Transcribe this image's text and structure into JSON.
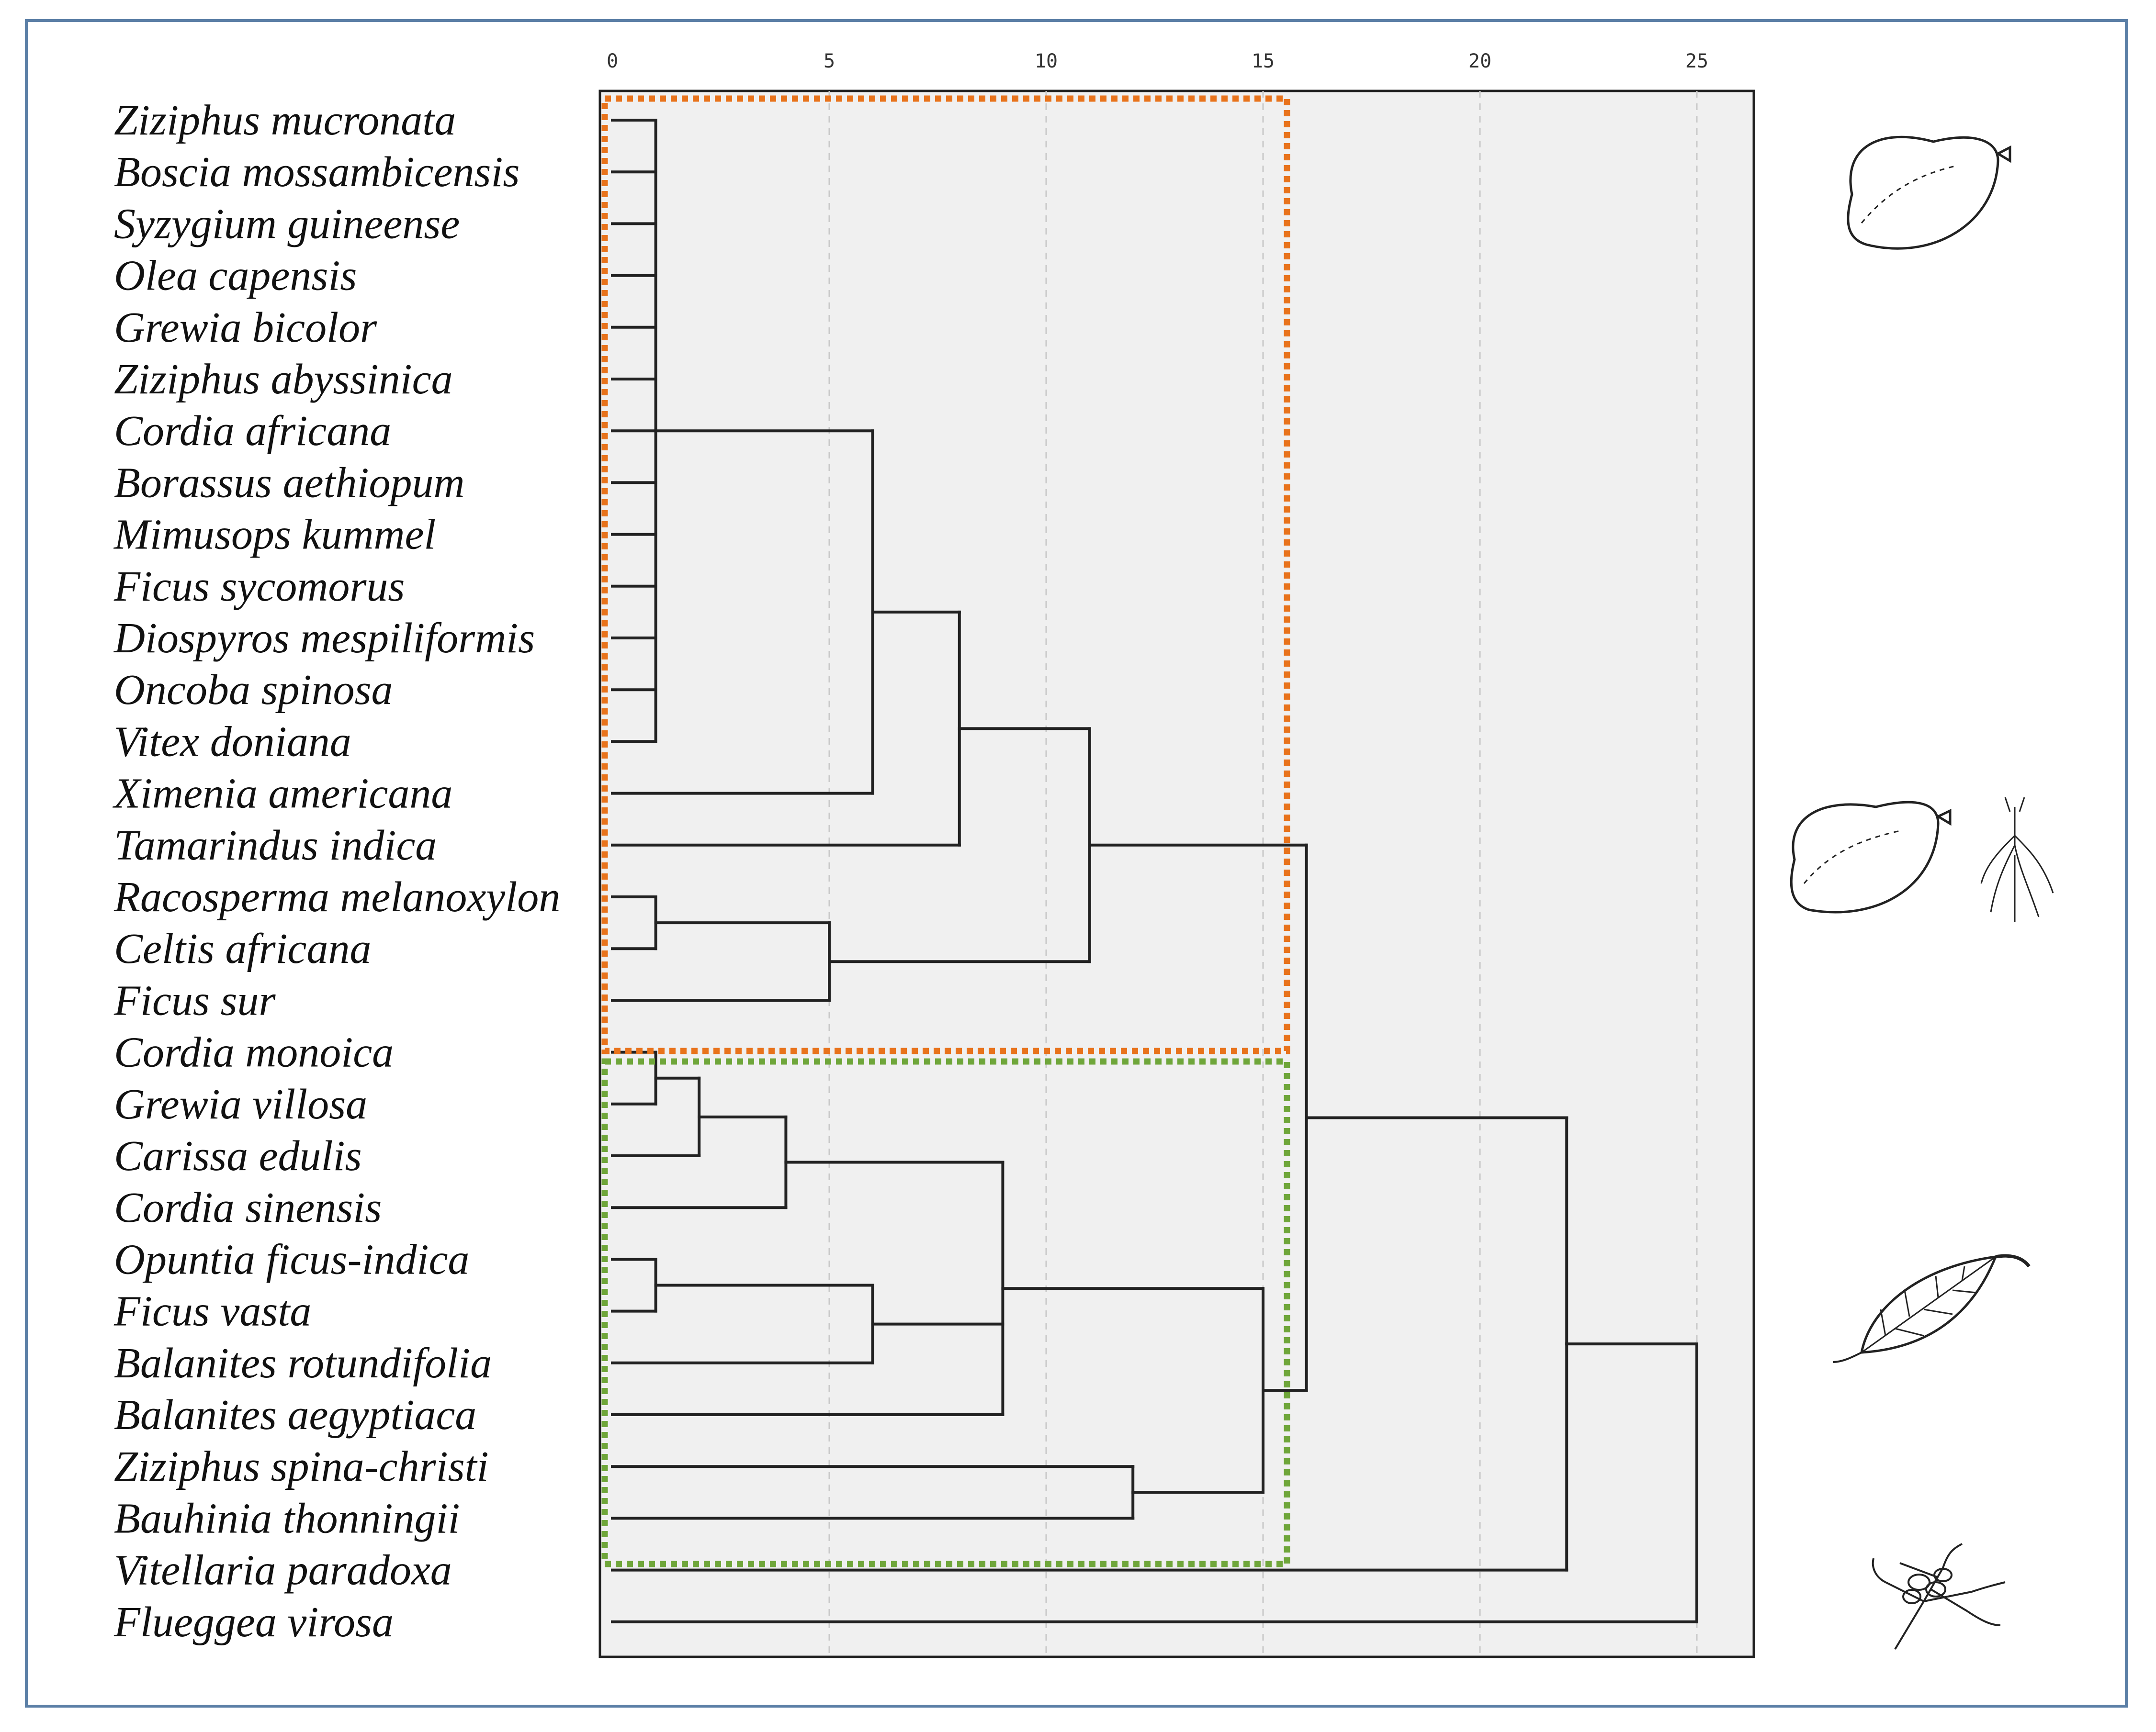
{
  "chart_data": {
    "type": "dendrogram",
    "title": "",
    "xlabel": "",
    "ylabel": "",
    "orientation": "horizontal",
    "x_ticks": [
      0,
      5,
      10,
      15,
      20,
      25
    ],
    "xlim": [
      0,
      26.3
    ],
    "grid": "vertical dashed",
    "leaves": [
      "Ziziphus mucronata",
      "Boscia mossambicensis",
      "Syzygium guineense",
      "Olea capensis",
      "Grewia bicolor",
      "Ziziphus abyssinica",
      "Cordia africana",
      "Borassus aethiopum",
      "Mimusops kummel",
      "Ficus sycomorus",
      "Diospyros mespiliformis",
      "Oncoba spinosa",
      "Vitex doniana",
      "Ximenia americana",
      "Tamarindus indica",
      "Racosperma melanoxylon",
      "Celtis africana",
      "Ficus sur",
      "Cordia monoica",
      "Grewia villosa",
      "Carissa edulis",
      "Cordia sinensis",
      "Opuntia ficus-indica",
      "Ficus vasta",
      "Balanites rotundifolia",
      "Balanites aegyptiaca",
      "Ziziphus spina-christi",
      "Bauhinia thonningii",
      "Vitellaria paradoxa",
      "Flueggea virosa"
    ],
    "merges": [
      {
        "members": [
          "Ziziphus mucronata",
          "Boscia mossambicensis",
          "Syzygium guineense",
          "Olea capensis",
          "Grewia bicolor",
          "Ziziphus abyssinica",
          "Cordia africana",
          "Borassus aethiopum",
          "Mimusops kummel",
          "Ficus sycomorus",
          "Diospyros mespiliformis",
          "Oncoba spinosa",
          "Vitex doniana"
        ],
        "height": 1
      },
      {
        "members": [
          "Racosperma melanoxylon",
          "Celtis africana"
        ],
        "height": 1
      },
      {
        "members": [
          "Cordia monoica",
          "Grewia villosa"
        ],
        "height": 1
      },
      {
        "members": [
          "Opuntia ficus-indica",
          "Ficus vasta"
        ],
        "height": 1
      },
      {
        "members": [
          "Cordia monoica + Grewia villosa",
          "Carissa edulis"
        ],
        "height": 2
      },
      {
        "members": [
          "Cordia monoica + Grewia villosa + Carissa edulis",
          "Cordia sinensis"
        ],
        "height": 4
      },
      {
        "members": [
          "Racosperma melanoxylon + Celtis africana",
          "Ficus sur"
        ],
        "height": 5
      },
      {
        "members": [
          "13-species cluster",
          "Ximenia americana"
        ],
        "height": 6
      },
      {
        "members": [
          "Opuntia ficus-indica + Ficus vasta",
          "Balanites rotundifolia"
        ],
        "height": 6
      },
      {
        "members": [
          "13-species cluster + Ximenia americana",
          "Tamarindus indica"
        ],
        "height": 8
      },
      {
        "members": [
          "Cordia monoica...Cordia sinensis",
          "Opuntia ficus-indica...Balanites rotundifolia"
        ],
        "height": 9
      },
      {
        "members": [
          "... + Balanites aegyptiaca"
        ],
        "height": 9
      },
      {
        "members": [
          "Cluster to Tamarindus indica",
          "Racosperma melanoxylon...Ficus sur"
        ],
        "height": 11
      },
      {
        "members": [
          "Ziziphus spina-christi",
          "Bauhinia thonningii"
        ],
        "height": 12
      },
      {
        "members": [
          "Cordia monoica...Balanites aegyptiaca",
          "Ziziphus spina-christi + Bauhinia thonningii"
        ],
        "height": 15
      },
      {
        "members": [
          "Ziziphus mucronata...Ficus sur",
          "Cordia monoica...Bauhinia thonningii"
        ],
        "height": 16
      },
      {
        "members": [
          "All above",
          "Vitellaria paradoxa"
        ],
        "height": 22
      },
      {
        "members": [
          "All above",
          "Flueggea virosa"
        ],
        "height": 25
      }
    ],
    "annotations": [
      {
        "shape": "dotted rectangle",
        "color": "#e8731c",
        "encloses_leaves": [
          "Ziziphus mucronata",
          "Ficus sur"
        ]
      },
      {
        "shape": "dotted rectangle",
        "color": "#6fa63a",
        "encloses_leaves": [
          "Cordia monoica",
          "Bauhinia thonningii"
        ]
      }
    ],
    "side_illustrations": [
      "fruit-icon",
      "fruit-and-root-icon",
      "leaf-icon",
      "flowering-branch-icon"
    ],
    "colors": {
      "border": "#5b7fa6",
      "plot_background": "#f0f0f0",
      "line": "#222222",
      "orange_box": "#e8731c",
      "green_box": "#6fa63a"
    }
  }
}
